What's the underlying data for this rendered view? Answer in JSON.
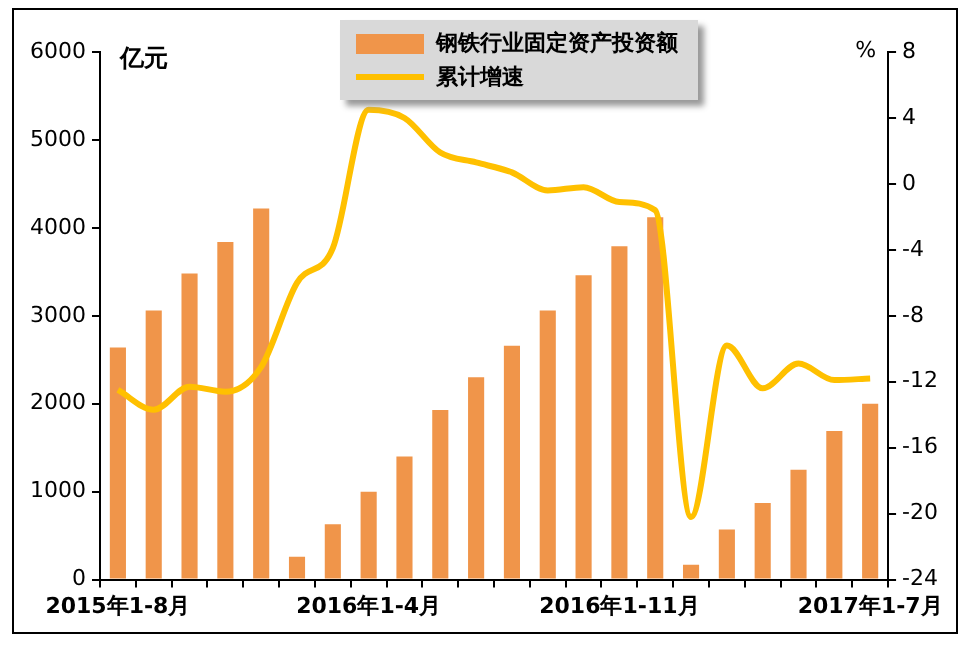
{
  "chart_data": {
    "type": "bar",
    "ylabel": "亿元",
    "y2label": "%",
    "categories": [
      "2015年1-8月",
      null,
      null,
      null,
      null,
      null,
      null,
      "2016年1-4月",
      null,
      null,
      null,
      null,
      null,
      null,
      "2016年1-11月",
      null,
      null,
      null,
      null,
      null,
      null,
      "2017年1-7月"
    ],
    "series": [
      {
        "name": "钢铁行业固定资产投资额",
        "color": "#f0954a",
        "values": [
          2640,
          3060,
          3480,
          3840,
          4220,
          260,
          630,
          1000,
          1400,
          1930,
          2300,
          2660,
          3060,
          3460,
          3790,
          4120,
          170,
          570,
          870,
          1250,
          1690,
          2000
        ]
      },
      {
        "name": "累计增速",
        "type": "line",
        "axis": "y2",
        "color": "#ffc000",
        "values": [
          -12.5,
          -13.7,
          -12.3,
          -12.6,
          -11.1,
          -6.0,
          -3.9,
          4.5,
          4.0,
          1.9,
          1.3,
          0.7,
          -0.4,
          -0.2,
          -1.1,
          -1.6,
          -20.2,
          -9.8,
          -12.4,
          -10.9,
          -11.9,
          -11.8
        ]
      }
    ],
    "ylim": [
      0,
      6000
    ],
    "yticks": [
      0,
      1000,
      2000,
      3000,
      4000,
      5000,
      6000
    ],
    "y2lim": [
      -24,
      8
    ],
    "y2ticks": [
      -24,
      -20,
      -16,
      -12,
      -8,
      -4,
      0,
      4,
      8
    ],
    "grid": false,
    "legend": "top",
    "marker": "none"
  }
}
